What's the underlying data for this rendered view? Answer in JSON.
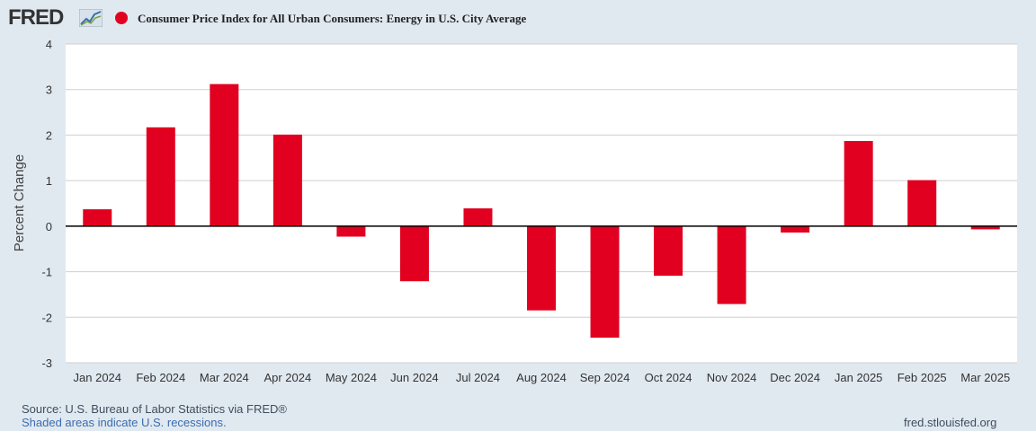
{
  "header": {
    "logo_text": "FRED",
    "series_title": "Consumer Price Index for All Urban Consumers: Energy in U.S. City Average"
  },
  "colors": {
    "bar": "#e1001f",
    "background": "#e1e9f0",
    "plot_background": "#ffffff",
    "grid": "#cfcfcf"
  },
  "chart_data": {
    "type": "bar",
    "title": "Consumer Price Index for All Urban Consumers: Energy in U.S. City Average",
    "xlabel": "",
    "ylabel": "Percent Change",
    "ylim": [
      -3,
      4
    ],
    "yticks": [
      "4",
      "3",
      "2",
      "1",
      "0",
      "-1",
      "-2",
      "-3"
    ],
    "categories": [
      "Jan 2024",
      "Feb 2024",
      "Mar 2024",
      "Apr 2024",
      "May 2024",
      "Jun 2024",
      "Jul 2024",
      "Aug 2024",
      "Sep 2024",
      "Oct 2024",
      "Nov 2024",
      "Dec 2024",
      "Jan 2025",
      "Feb 2025",
      "Mar 2025"
    ],
    "values": [
      0.37,
      2.17,
      3.12,
      2.01,
      -0.23,
      -1.21,
      0.39,
      -1.85,
      -2.45,
      -1.09,
      -1.71,
      -0.14,
      1.87,
      1.01,
      -0.07
    ],
    "grid": true,
    "legend": "top-left"
  },
  "footer": {
    "source": "Source: U.S. Bureau of Labor Statistics via FRED®",
    "recession_note": "Shaded areas indicate U.S. recessions.",
    "url": "fred.stlouisfed.org"
  }
}
